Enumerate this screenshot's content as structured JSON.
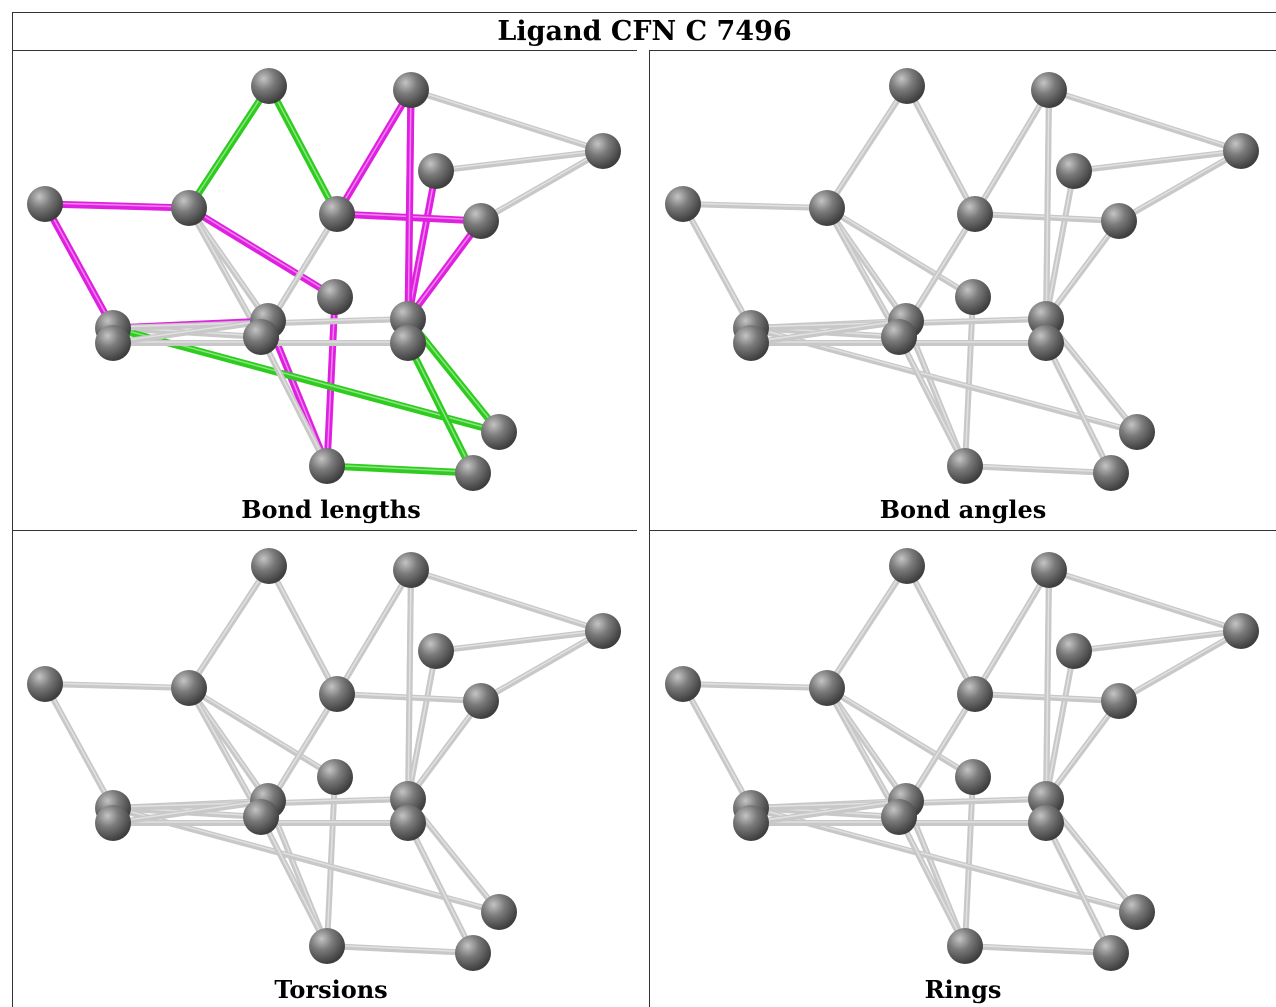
{
  "title": "Ligand CFN C 7496",
  "panels": [
    {
      "label": "Bond lengths",
      "highlight": true
    },
    {
      "label": "Bond angles",
      "highlight": false
    },
    {
      "label": "Torsions",
      "highlight": false
    },
    {
      "label": "Rings",
      "highlight": false
    }
  ],
  "colors": {
    "bond_default": "#c8c8c8",
    "bond_magenta": "#e020e0",
    "bond_green": "#2ecc1e",
    "atom": "#7a7a7a",
    "border": "#333333"
  }
}
